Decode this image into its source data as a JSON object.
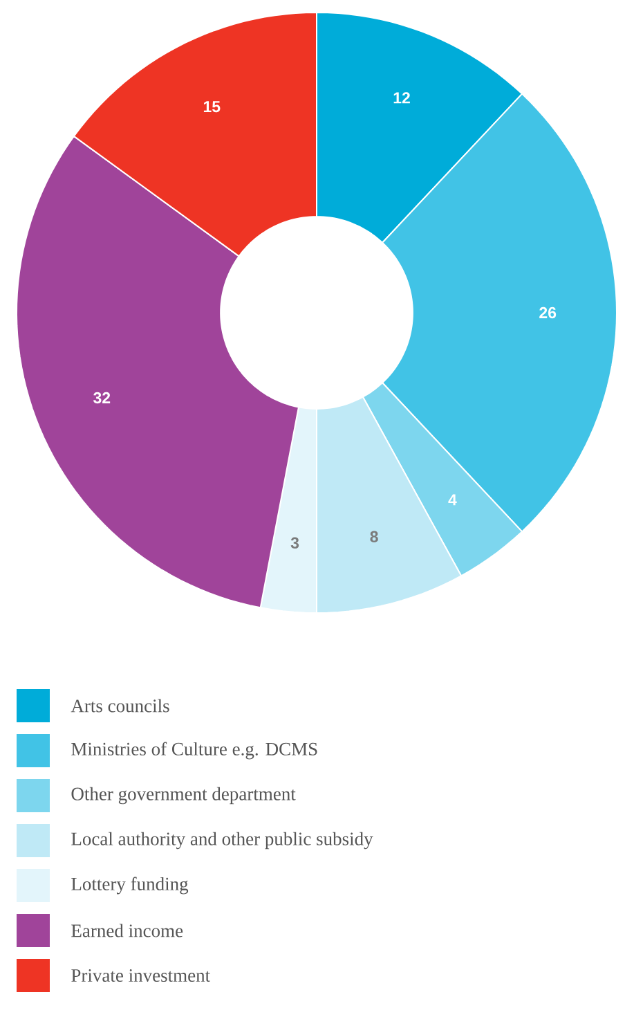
{
  "chart_data": {
    "type": "donut",
    "categories": [
      "Arts councils",
      "Ministries of Culture e.g. DCMS",
      "Other government department",
      "Local authority and other public subsidy",
      "Lottery funding",
      "Earned income",
      "Private investment"
    ],
    "values": [
      12,
      26,
      4,
      8,
      3,
      32,
      15
    ],
    "colors": [
      "#00acd9",
      "#41c3e6",
      "#7dd6ee",
      "#bfe9f6",
      "#e3f5fb",
      "#a0449a",
      "#ee3424"
    ],
    "data_labels": true,
    "legend": "bottom"
  }
}
